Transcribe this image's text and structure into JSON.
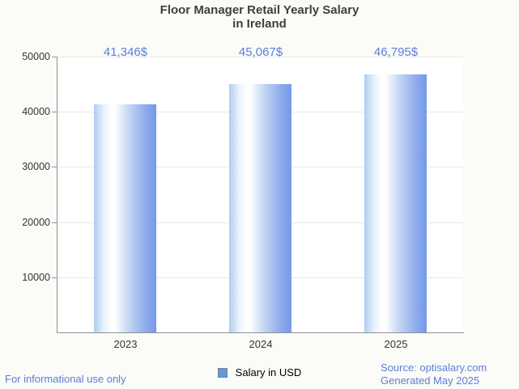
{
  "title": {
    "line1": "Floor Manager Retail Yearly Salary",
    "line2": "in Ireland"
  },
  "chart_data": {
    "type": "bar",
    "title": "Floor Manager Retail Yearly Salary in Ireland",
    "categories": [
      "2023",
      "2024",
      "2025"
    ],
    "series": [
      {
        "name": "Salary in USD",
        "values": [
          41346,
          45067,
          46795
        ]
      }
    ],
    "value_labels": [
      "41,346$",
      "45,067$",
      "46,795$"
    ],
    "xlabel": "",
    "ylabel": "",
    "ylim": [
      0,
      50000
    ],
    "yticks": [
      10000,
      20000,
      30000,
      40000,
      50000
    ],
    "grid": true,
    "legend_position": "bottom-center",
    "bar_style": "horizontal gradient light-blue → white → blue"
  },
  "legend": {
    "label": "Salary in USD",
    "marker_color": "#5e9ae2",
    "marker_border": "#808080"
  },
  "footer": {
    "left": "For informational use only",
    "source": "Source: optisalary.com",
    "generated": "Generated May 2025"
  },
  "colors": {
    "background": "#fbfbf8",
    "plot_background": "#ffffff",
    "accent_text": "#5b7ed8",
    "title_text": "#3f3f3f",
    "tick_text": "#333333",
    "axis_line": "#919191",
    "gridline": "#e8e8e8",
    "bar_gradient_left": "#aecdf3",
    "bar_gradient_mid": "#ffffff",
    "bar_gradient_right": "#7599e7"
  }
}
